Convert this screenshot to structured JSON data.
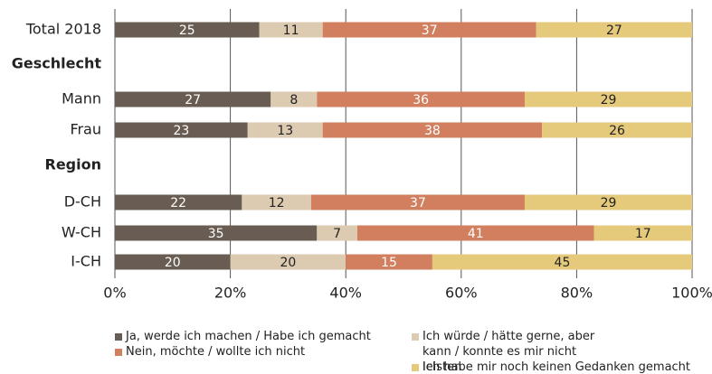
{
  "chart_data": {
    "type": "stacked_barh",
    "categories": [
      "Total 2018",
      "Geschlecht",
      "Mann",
      "Frau",
      "Region",
      "D-CH",
      "W-CH",
      "I-CH"
    ],
    "group_headers": [
      "Geschlecht",
      "Region"
    ],
    "series": [
      {
        "name": "Ja, werde ich machen / Habe ich gemacht",
        "color": "#685c53",
        "values": [
          25,
          null,
          27,
          23,
          null,
          22,
          35,
          20
        ]
      },
      {
        "name": "Ich würde / hätte gerne, aber kann / konnte es mir nicht leisten",
        "color": "#dccbb0",
        "values": [
          11,
          null,
          8,
          13,
          null,
          12,
          7,
          20
        ]
      },
      {
        "name": "Nein, möchte / wollte ich nicht",
        "color": "#d27f5f",
        "values": [
          37,
          null,
          36,
          38,
          null,
          37,
          41,
          15
        ]
      },
      {
        "name": "Ich habe mir noch keinen Gedanken gemacht",
        "color": "#e5ca7c",
        "values": [
          27,
          null,
          29,
          26,
          null,
          29,
          17,
          45
        ]
      }
    ],
    "xlim": [
      0,
      100
    ],
    "xticks": [
      {
        "value": 0,
        "label": "0%"
      },
      {
        "value": 20,
        "label": "20%"
      },
      {
        "value": 40,
        "label": "40%"
      },
      {
        "value": 60,
        "label": "60%"
      },
      {
        "value": 80,
        "label": "80%"
      },
      {
        "value": 100,
        "label": "100%"
      }
    ],
    "grid": true
  }
}
